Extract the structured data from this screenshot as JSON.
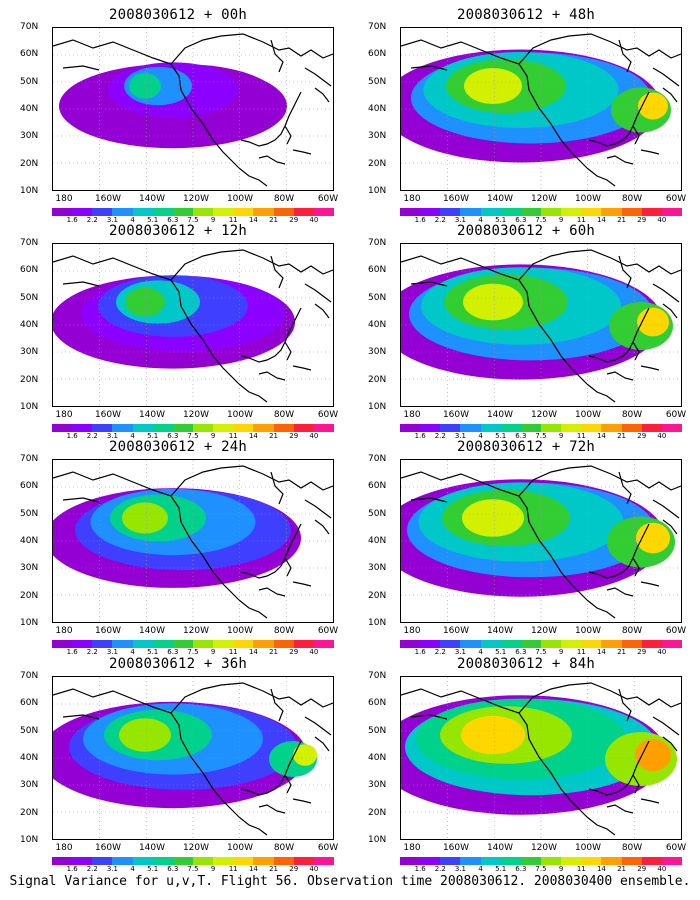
{
  "footer": "Signal Variance for u,v,T. Flight 56. Observation time 2008030612. 2008030400 ensemble.",
  "y_axis_labels": [
    "70N",
    "60N",
    "50N",
    "40N",
    "30N",
    "20N",
    "10N"
  ],
  "x_axis_labels": [
    "180",
    "160W",
    "140W",
    "120W",
    "100W",
    "80W",
    "60W"
  ],
  "colorbar_labels": [
    "1.6",
    "2.2",
    "3.1",
    "4",
    "5.1",
    "6.3",
    "7.5",
    "9",
    "11",
    "14",
    "21",
    "29",
    "40"
  ],
  "colorbar_colors": [
    "#9400d3",
    "#8b00ff",
    "#3f3fff",
    "#1e90ff",
    "#00c8c8",
    "#00d28c",
    "#32cd32",
    "#96e600",
    "#d2f000",
    "#ffd700",
    "#ffa000",
    "#ff6400",
    "#ff1e3c",
    "#ff1493"
  ],
  "panels": [
    {
      "title": "2008030612 + 00h",
      "intensity": 0.1
    },
    {
      "title": "2008030612 + 48h",
      "intensity": 0.75
    },
    {
      "title": "2008030612 + 12h",
      "intensity": 0.3
    },
    {
      "title": "2008030612 + 60h",
      "intensity": 0.8
    },
    {
      "title": "2008030612 + 24h",
      "intensity": 0.45
    },
    {
      "title": "2008030612 + 72h",
      "intensity": 0.85
    },
    {
      "title": "2008030612 + 36h",
      "intensity": 0.6
    },
    {
      "title": "2008030612 + 84h",
      "intensity": 0.9
    }
  ]
}
